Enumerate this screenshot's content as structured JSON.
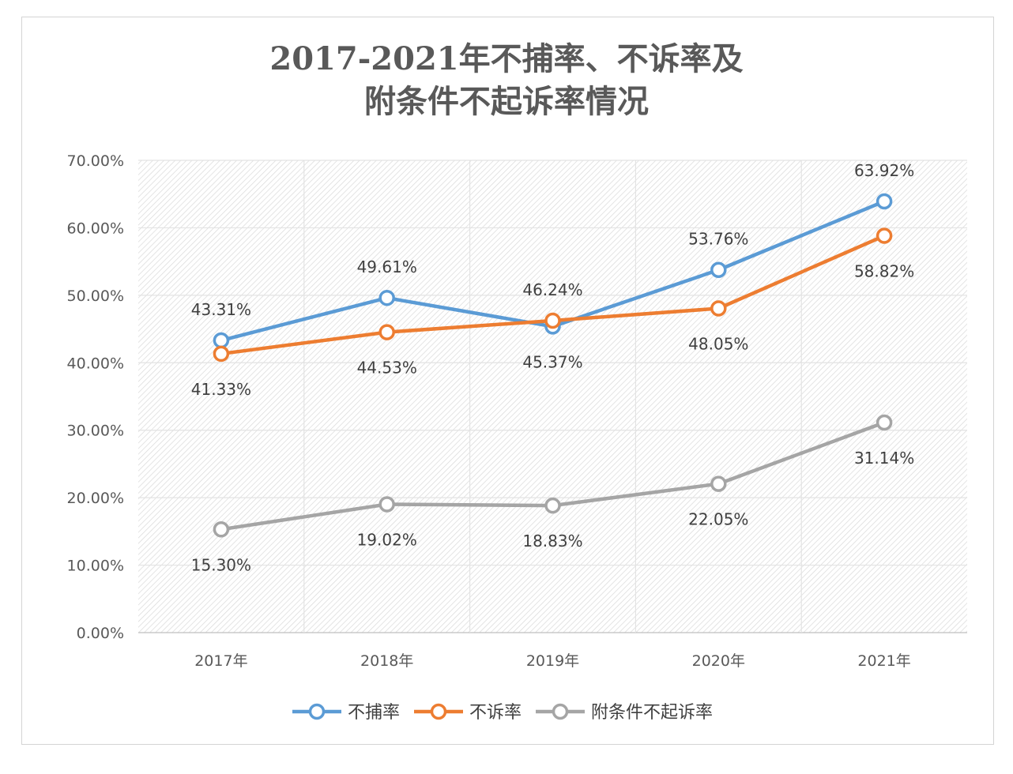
{
  "chart_data": {
    "type": "line",
    "title": [
      "2017-2021年不捕率、不诉率及",
      "附条件不起诉率情况"
    ],
    "categories": [
      "2017年",
      "2018年",
      "2019年",
      "2020年",
      "2021年"
    ],
    "ylim": [
      0,
      70
    ],
    "yticks": [
      "0.00%",
      "10.00%",
      "20.00%",
      "30.00%",
      "40.00%",
      "50.00%",
      "60.00%",
      "70.00%"
    ],
    "grid": true,
    "legend": "bottom",
    "series": [
      {
        "name": "不捕率",
        "color": "#5b9bd5",
        "values": [
          43.31,
          49.61,
          45.37,
          53.76,
          63.92
        ],
        "labels": [
          "43.31%",
          "49.61%",
          "45.37%",
          "53.76%",
          "63.92%"
        ],
        "label_pos": [
          "above",
          "above",
          "below",
          "above",
          "above"
        ]
      },
      {
        "name": "不诉率",
        "color": "#ed7d31",
        "values": [
          41.33,
          44.53,
          46.24,
          48.05,
          58.82
        ],
        "labels": [
          "41.33%",
          "44.53%",
          "46.24%",
          "48.05%",
          "58.82%"
        ],
        "label_pos": [
          "below",
          "below",
          "above",
          "below",
          "below"
        ]
      },
      {
        "name": "附条件不起诉率",
        "color": "#a5a5a5",
        "values": [
          15.3,
          19.02,
          18.83,
          22.05,
          31.14
        ],
        "labels": [
          "15.30%",
          "19.02%",
          "18.83%",
          "22.05%",
          "31.14%"
        ],
        "label_pos": [
          "below",
          "below",
          "below",
          "below",
          "below"
        ]
      }
    ]
  }
}
